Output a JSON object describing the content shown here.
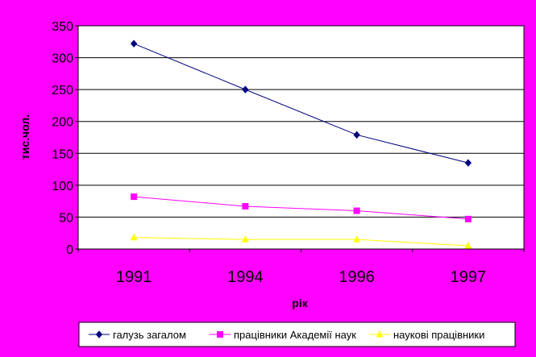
{
  "chart_data": {
    "type": "line",
    "title": "",
    "xlabel": "рік",
    "ylabel": "тис.чол.",
    "categories": [
      "1991",
      "1994",
      "1996",
      "1997"
    ],
    "ylim": [
      0,
      350
    ],
    "yticks": [
      "0",
      "50",
      "100",
      "150",
      "200",
      "250",
      "300",
      "350"
    ],
    "grid": "horizontal",
    "legend_position": "bottom",
    "plot_background": "#FFFFFF",
    "page_background": "#FF00FF",
    "series": [
      {
        "name": "галузь загалом",
        "values": [
          322,
          250,
          179,
          135
        ],
        "color": "#000080",
        "marker": "diamond"
      },
      {
        "name": "працівники Академії наук",
        "values": [
          82,
          67,
          60,
          47
        ],
        "color": "#FF00FF",
        "marker": "square"
      },
      {
        "name": "наукові працівники",
        "values": [
          18,
          15,
          15,
          5
        ],
        "color": "#FFFF00",
        "marker": "triangle"
      }
    ]
  }
}
